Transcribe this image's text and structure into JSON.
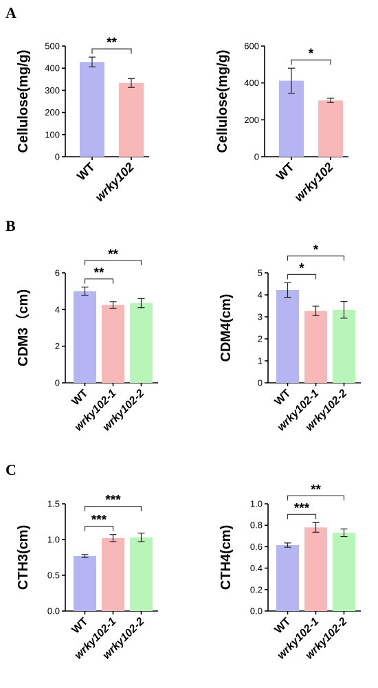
{
  "panel_labels": [
    "A",
    "B",
    "C"
  ],
  "colors": {
    "WT": "#b5b5f4",
    "mutant1": "#f8b8b8",
    "mutant2": "#b8f5b8"
  },
  "chart_data": [
    {
      "type": "bar",
      "panel": "A",
      "categories": [
        "WT",
        "wrky102"
      ],
      "italic": [
        false,
        true
      ],
      "values": [
        428,
        333
      ],
      "errors": [
        22,
        20
      ],
      "colors": [
        "#b5b5f4",
        "#f8b8b8"
      ],
      "ylabel": "Cellulose(mg/g)",
      "ylim": [
        0,
        500
      ],
      "yticks": [
        "0",
        "100",
        "200",
        "300",
        "400",
        "500"
      ],
      "significance": [
        {
          "from": 0,
          "to": 1,
          "label": "**"
        }
      ]
    },
    {
      "type": "bar",
      "panel": "A",
      "categories": [
        "WT",
        "wrky102"
      ],
      "italic": [
        false,
        true
      ],
      "values": [
        412,
        305
      ],
      "errors": [
        68,
        12
      ],
      "colors": [
        "#b5b5f4",
        "#f8b8b8"
      ],
      "ylabel": "Cellulose(mg/g)",
      "ylim": [
        0,
        600
      ],
      "yticks": [
        "0",
        "200",
        "400",
        "600"
      ],
      "significance": [
        {
          "from": 0,
          "to": 1,
          "label": "*"
        }
      ]
    },
    {
      "type": "bar",
      "panel": "B",
      "categories": [
        "WT",
        "wrky102-1",
        "wrky102-2"
      ],
      "italic": [
        false,
        true,
        true
      ],
      "values": [
        5.0,
        4.25,
        4.35
      ],
      "errors": [
        0.22,
        0.18,
        0.25
      ],
      "colors": [
        "#b5b5f4",
        "#f8b8b8",
        "#b8f5b8"
      ],
      "ylabel": "CDM3（cm)",
      "ylim": [
        0,
        6
      ],
      "yticks": [
        "0",
        "2",
        "4",
        "6"
      ],
      "significance": [
        {
          "from": 0,
          "to": 1,
          "label": "**"
        },
        {
          "from": 0,
          "to": 2,
          "label": "**"
        }
      ]
    },
    {
      "type": "bar",
      "panel": "B",
      "categories": [
        "WT",
        "wrky102-1",
        "wrky102-2"
      ],
      "italic": [
        false,
        true,
        true
      ],
      "values": [
        4.22,
        3.27,
        3.32
      ],
      "errors": [
        0.33,
        0.22,
        0.38
      ],
      "colors": [
        "#b5b5f4",
        "#f8b8b8",
        "#b8f5b8"
      ],
      "ylabel": "CDM4(cm)",
      "ylim": [
        0,
        5
      ],
      "yticks": [
        "0",
        "1",
        "2",
        "3",
        "4",
        "5"
      ],
      "significance": [
        {
          "from": 0,
          "to": 1,
          "label": "*"
        },
        {
          "from": 0,
          "to": 2,
          "label": "*"
        }
      ]
    },
    {
      "type": "bar",
      "panel": "C",
      "categories": [
        "WT",
        "wrky102-1",
        "wrky102-2"
      ],
      "italic": [
        false,
        true,
        true
      ],
      "values": [
        0.77,
        1.02,
        1.03
      ],
      "errors": [
        0.02,
        0.05,
        0.06
      ],
      "colors": [
        "#b5b5f4",
        "#f8b8b8",
        "#b8f5b8"
      ],
      "ylabel": "CTH3(cm)",
      "ylim": [
        0,
        1.5
      ],
      "yticks": [
        "0.0",
        "0.5",
        "1.0",
        "1.5"
      ],
      "significance": [
        {
          "from": 0,
          "to": 1,
          "label": "***"
        },
        {
          "from": 0,
          "to": 2,
          "label": "***"
        }
      ]
    },
    {
      "type": "bar",
      "panel": "C",
      "categories": [
        "WT",
        "wrky102-1",
        "wrky102-2"
      ],
      "italic": [
        false,
        true,
        true
      ],
      "values": [
        0.615,
        0.78,
        0.73
      ],
      "errors": [
        0.02,
        0.045,
        0.035
      ],
      "colors": [
        "#b5b5f4",
        "#f8b8b8",
        "#b8f5b8"
      ],
      "ylabel": "CTH4(cm)",
      "ylim": [
        0,
        1.0
      ],
      "yticks": [
        "0.0",
        "0.2",
        "0.4",
        "0.6",
        "0.8",
        "1.0"
      ],
      "significance": [
        {
          "from": 0,
          "to": 1,
          "label": "***"
        },
        {
          "from": 0,
          "to": 2,
          "label": "**"
        }
      ]
    }
  ]
}
